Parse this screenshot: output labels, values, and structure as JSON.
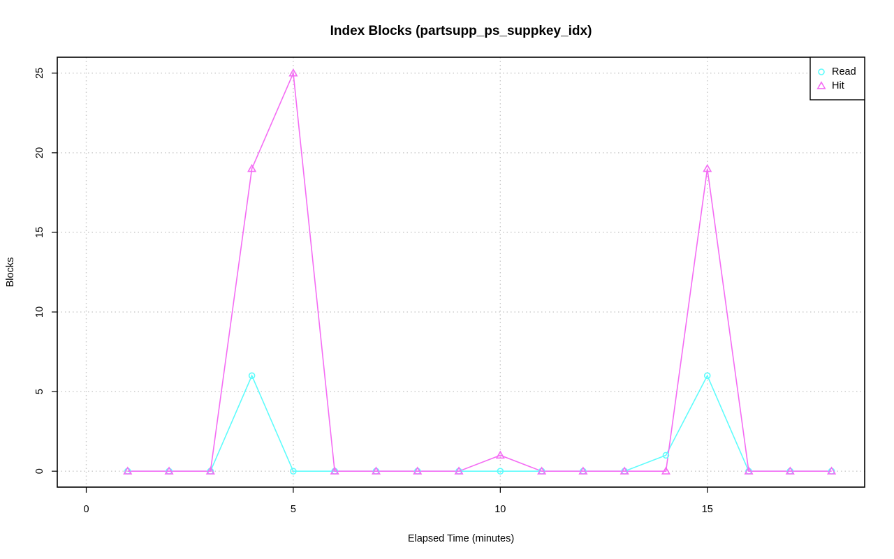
{
  "chart_data": {
    "type": "line",
    "title": "Index Blocks (partsupp_ps_suppkey_idx)",
    "xlabel": "Elapsed Time (minutes)",
    "ylabel": "Blocks",
    "xlim": [
      -0.7,
      18.8
    ],
    "ylim": [
      -1,
      26
    ],
    "xticks": [
      0,
      5,
      10,
      15
    ],
    "yticks": [
      0,
      5,
      10,
      15,
      20,
      25
    ],
    "xtick_labels": [
      "0",
      "5",
      "10",
      "15"
    ],
    "ytick_labels": [
      "0",
      "5",
      "10",
      "15",
      "20",
      "25"
    ],
    "grid": true,
    "legend_position": "top-right",
    "x": [
      1,
      2,
      3,
      4,
      5,
      6,
      7,
      8,
      9,
      10,
      11,
      12,
      13,
      14,
      15,
      16,
      17,
      18
    ],
    "series": [
      {
        "name": "Read",
        "marker": "circle",
        "color": "#5ffcfc",
        "values": [
          0,
          0,
          0,
          6,
          0,
          0,
          0,
          0,
          0,
          0,
          0,
          0,
          0,
          1,
          6,
          0,
          0,
          0
        ]
      },
      {
        "name": "Hit",
        "marker": "triangle",
        "color": "#f46cf4",
        "values": [
          0,
          0,
          0,
          19,
          25,
          0,
          0,
          0,
          0,
          1,
          0,
          0,
          0,
          0,
          19,
          0,
          0,
          0
        ]
      }
    ]
  }
}
